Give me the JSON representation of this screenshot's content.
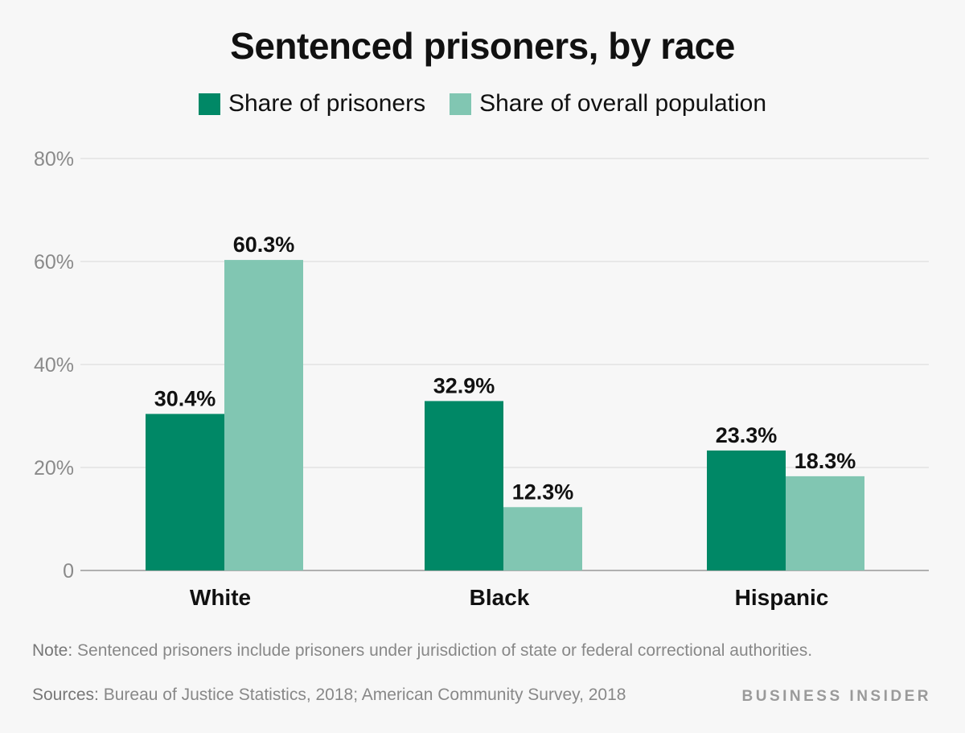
{
  "chart_data": {
    "type": "bar",
    "title": "Sentenced prisoners, by race",
    "categories": [
      "White",
      "Black",
      "Hispanic"
    ],
    "series": [
      {
        "name": "Share of prisoners",
        "values": [
          30.4,
          32.9,
          23.3
        ],
        "labels": [
          "30.4%",
          "32.9%",
          "23.3%"
        ],
        "color": "#008866"
      },
      {
        "name": "Share of overall population",
        "values": [
          60.3,
          12.3,
          18.3
        ],
        "labels": [
          "60.3%",
          "12.3%",
          "18.3%"
        ],
        "color": "#81c6b2"
      }
    ],
    "ylim": [
      0,
      80
    ],
    "yticks": [
      0,
      20,
      40,
      60,
      80
    ],
    "ytick_labels": [
      "0",
      "20%",
      "40%",
      "60%",
      "80%"
    ],
    "grid": true,
    "legend_position": "top-center"
  },
  "footer": {
    "note_lead": "Note:",
    "note_text": " Sentenced prisoners include prisoners under jurisdiction of state or federal correctional authorities.",
    "sources_lead": "Sources:",
    "sources_text": " Bureau of Justice Statistics, 2018; American Community Survey, 2018",
    "brand": "BUSINESS INSIDER"
  },
  "colors": {
    "background": "#f7f7f7",
    "grid": "#e3e3e3",
    "axis_text": "#8a8a8a"
  }
}
